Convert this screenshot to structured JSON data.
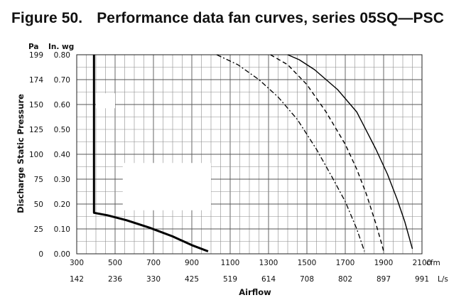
{
  "figure": {
    "number": "Figure 50.",
    "title": "Performance data fan curves, series 05SQ—PSC"
  },
  "chart_data": {
    "type": "line",
    "xlabel": "Airflow",
    "ylabel": "Discharge Static Pressure",
    "x_unit_primary": "cfm",
    "x_unit_secondary": "L/s",
    "y_unit_primary": "In. wg",
    "y_unit_secondary": "Pa",
    "xlim": [
      300,
      2100
    ],
    "ylim": [
      0,
      0.8
    ],
    "x_ticks": [
      300,
      500,
      700,
      900,
      1100,
      1300,
      1500,
      1700,
      1900,
      2100
    ],
    "x_ticks_secondary": [
      "142",
      "236",
      "330",
      "425",
      "519",
      "614",
      "708",
      "802",
      "897",
      "991"
    ],
    "y_ticks": [
      0.0,
      0.1,
      0.2,
      0.3,
      0.4,
      0.5,
      0.6,
      0.7,
      0.8
    ],
    "y_tick_labels": [
      "0.00",
      "0.10",
      "0.20",
      "0.30",
      "0.40",
      "0.50",
      "0.60",
      "0.70",
      "0.80"
    ],
    "y_ticks_secondary": [
      "0",
      "25",
      "50",
      "75",
      "100",
      "125",
      "150",
      "174",
      "199"
    ],
    "grid": true,
    "series": [
      {
        "style": "thick",
        "x": [
          390,
          390,
          460,
          560,
          680,
          800,
          900,
          985
        ],
        "y": [
          0.8,
          0.165,
          0.155,
          0.135,
          0.105,
          0.07,
          0.035,
          0.01
        ]
      },
      {
        "style": "solid",
        "x": [
          1400,
          1460,
          1540,
          1660,
          1760,
          1860,
          1920,
          1970,
          2010,
          2050
        ],
        "y": [
          0.8,
          0.78,
          0.74,
          0.66,
          0.57,
          0.42,
          0.32,
          0.22,
          0.13,
          0.02
        ]
      },
      {
        "style": "dashed",
        "x": [
          1310,
          1400,
          1500,
          1600,
          1700,
          1760,
          1810,
          1860,
          1890,
          1900
        ],
        "y": [
          0.8,
          0.76,
          0.68,
          0.57,
          0.44,
          0.34,
          0.24,
          0.12,
          0.04,
          0.01
        ]
      },
      {
        "style": "dashdot",
        "x": [
          1030,
          1140,
          1250,
          1350,
          1450,
          1550,
          1630,
          1700,
          1760,
          1800
        ],
        "y": [
          0.8,
          0.76,
          0.7,
          0.63,
          0.54,
          0.42,
          0.31,
          0.21,
          0.1,
          0.01
        ]
      }
    ]
  }
}
